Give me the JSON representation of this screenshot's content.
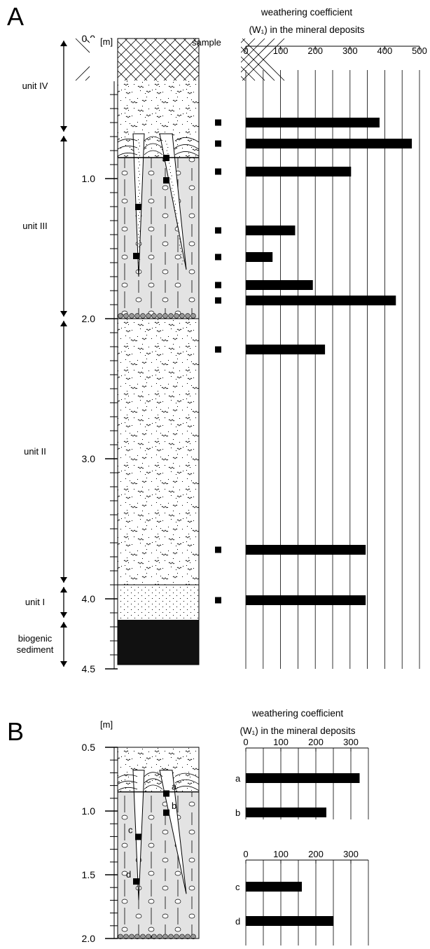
{
  "panels": {
    "a": {
      "letter": "A"
    },
    "b": {
      "letter": "B"
    }
  },
  "column": {
    "depth_unit": "[m]",
    "sample_label": "sample"
  },
  "units": [
    {
      "label": "unit IV",
      "top": 0.0,
      "bottom": 0.68
    },
    {
      "label": "unit III",
      "top": 0.68,
      "bottom": 2.0
    },
    {
      "label": "unit II",
      "top": 2.0,
      "bottom": 3.9
    },
    {
      "label": "unit I",
      "top": 3.9,
      "bottom": 4.15
    },
    {
      "label": "biogenic sediment",
      "lines": [
        "biogenic",
        "sediment"
      ],
      "top": 4.15,
      "bottom": 4.5
    }
  ],
  "chart_data": [
    {
      "type": "bar",
      "panel": "A",
      "orientation": "horizontal",
      "title": [
        "weathering coefficient",
        "(W₁) in the mineral deposits"
      ],
      "x_axis": {
        "range": [
          0,
          500
        ],
        "ticks": [
          0,
          100,
          200,
          300,
          400,
          500
        ]
      },
      "y_axis": {
        "label": "[m]",
        "range": [
          0.0,
          4.5
        ],
        "ticks": [
          "0.0",
          "1.0",
          "2.0",
          "3.0",
          "4.0",
          "4.5"
        ],
        "tick_values": [
          0,
          1,
          2,
          3,
          4,
          4.5
        ]
      },
      "series": [
        {
          "points": [
            {
              "depth": 0.6,
              "value": 385
            },
            {
              "depth": 0.75,
              "value": 478
            },
            {
              "depth": 0.95,
              "value": 303
            },
            {
              "depth": 1.37,
              "value": 142
            },
            {
              "depth": 1.56,
              "value": 77
            },
            {
              "depth": 1.76,
              "value": 193
            },
            {
              "depth": 1.87,
              "value": 432
            },
            {
              "depth": 2.22,
              "value": 228
            },
            {
              "depth": 3.65,
              "value": 345
            },
            {
              "depth": 4.01,
              "value": 345
            }
          ]
        }
      ],
      "grid": true
    },
    {
      "type": "bar",
      "panel": "B",
      "orientation": "horizontal",
      "title": [
        "weathering coefficient",
        "(W₁) in the mineral deposits"
      ],
      "x_axis": {
        "range": [
          0,
          350
        ],
        "ticks": [
          0,
          100,
          200,
          300
        ]
      },
      "categories": [
        "a",
        "b"
      ],
      "values": [
        325,
        230
      ],
      "grid": true
    },
    {
      "type": "bar",
      "panel": "B",
      "orientation": "horizontal",
      "x_axis": {
        "range": [
          0,
          350
        ],
        "ticks": [
          0,
          100,
          200,
          300
        ]
      },
      "categories": [
        "c",
        "d"
      ],
      "values": [
        160,
        250
      ],
      "grid": true
    }
  ],
  "panel_b_column": {
    "y_axis": {
      "label": "[m]",
      "range": [
        0.5,
        2.0
      ],
      "ticks": [
        "0.5",
        "1.0",
        "1.5",
        "2.0"
      ],
      "tick_values": [
        0.5,
        1.0,
        1.5,
        2.0
      ]
    },
    "sample_marks": [
      {
        "label": "a",
        "depth": 0.86
      },
      {
        "label": "b",
        "depth": 1.01
      },
      {
        "label": "c",
        "depth": 1.2
      },
      {
        "label": "d",
        "depth": 1.55
      }
    ]
  }
}
